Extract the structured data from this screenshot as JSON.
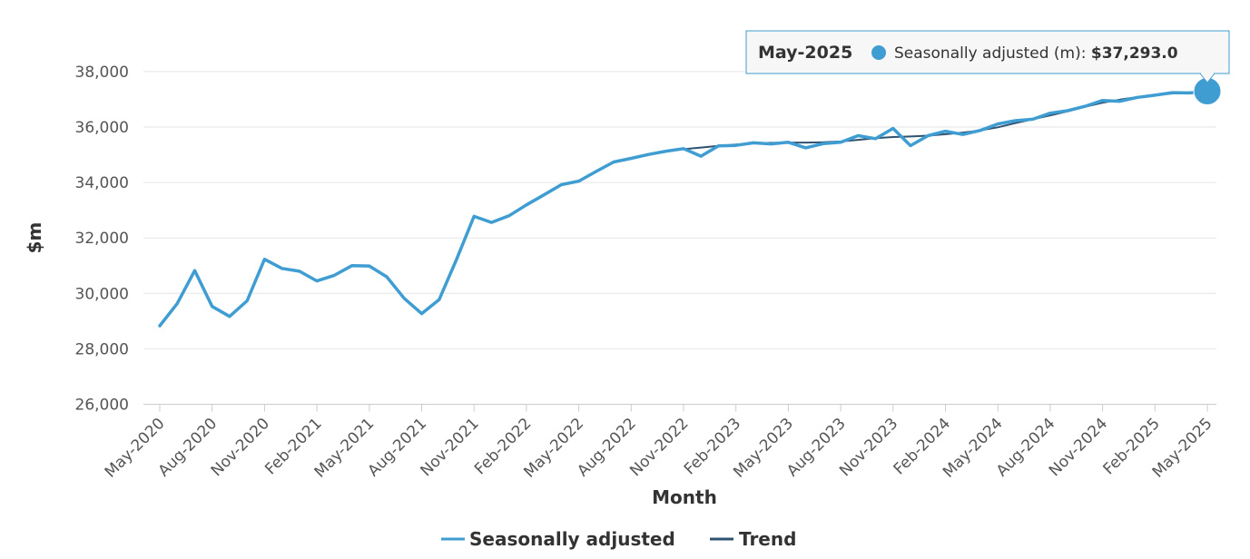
{
  "chart_data": {
    "type": "line",
    "xlabel": "Month",
    "ylabel": "$m",
    "ylim": [
      26000,
      38500
    ],
    "yticks": [
      26000,
      28000,
      30000,
      32000,
      34000,
      36000,
      38000
    ],
    "ytick_labels": [
      "26,000",
      "28,000",
      "30,000",
      "32,000",
      "34,000",
      "36,000",
      "38,000"
    ],
    "x_tick_labels": [
      "May-2020",
      "Aug-2020",
      "Nov-2020",
      "Feb-2021",
      "May-2021",
      "Aug-2021",
      "Nov-2021",
      "Feb-2022",
      "May-2022",
      "Aug-2022",
      "Nov-2022",
      "Feb-2023",
      "May-2023",
      "Aug-2023",
      "Nov-2023",
      "Feb-2024",
      "May-2024",
      "Aug-2024",
      "Nov-2024",
      "Feb-2025",
      "May-2025"
    ],
    "grid": true,
    "legend_position": "bottom-center",
    "x": [
      "May-2020",
      "Jun-2020",
      "Jul-2020",
      "Aug-2020",
      "Sep-2020",
      "Oct-2020",
      "Nov-2020",
      "Dec-2020",
      "Jan-2021",
      "Feb-2021",
      "Mar-2021",
      "Apr-2021",
      "May-2021",
      "Jun-2021",
      "Jul-2021",
      "Aug-2021",
      "Sep-2021",
      "Oct-2021",
      "Nov-2021",
      "Dec-2021",
      "Jan-2022",
      "Feb-2022",
      "Mar-2022",
      "Apr-2022",
      "May-2022",
      "Jun-2022",
      "Jul-2022",
      "Aug-2022",
      "Sep-2022",
      "Oct-2022",
      "Nov-2022",
      "Dec-2022",
      "Jan-2023",
      "Feb-2023",
      "Mar-2023",
      "Apr-2023",
      "May-2023",
      "Jun-2023",
      "Jul-2023",
      "Aug-2023",
      "Sep-2023",
      "Oct-2023",
      "Nov-2023",
      "Dec-2023",
      "Jan-2024",
      "Feb-2024",
      "Mar-2024",
      "Apr-2024",
      "May-2024",
      "Jun-2024",
      "Jul-2024",
      "Aug-2024",
      "Sep-2024",
      "Oct-2024",
      "Nov-2024",
      "Dec-2024",
      "Jan-2025",
      "Feb-2025",
      "Mar-2025",
      "Apr-2025",
      "May-2025"
    ],
    "series": [
      {
        "name": "Seasonally adjusted",
        "color": "#3f9dd2",
        "values": [
          28830,
          29630,
          30820,
          29530,
          29170,
          29730,
          31230,
          30900,
          30800,
          30450,
          30650,
          31000,
          30990,
          30600,
          29820,
          29270,
          29770,
          31230,
          32780,
          32560,
          32800,
          33190,
          33550,
          33920,
          34050,
          34400,
          34740,
          34870,
          35010,
          35130,
          35220,
          34950,
          35320,
          35340,
          35430,
          35390,
          35450,
          35250,
          35400,
          35450,
          35690,
          35580,
          35950,
          35330,
          35690,
          35850,
          35730,
          35880,
          36110,
          36230,
          36280,
          36500,
          36590,
          36750,
          36960,
          36930,
          37070,
          37150,
          37240,
          37230,
          37293
        ]
      },
      {
        "name": "Trend",
        "color": "#2f5270",
        "values": [
          null,
          null,
          null,
          null,
          null,
          null,
          null,
          null,
          null,
          null,
          null,
          null,
          null,
          null,
          null,
          null,
          null,
          null,
          null,
          null,
          null,
          null,
          null,
          null,
          null,
          null,
          null,
          null,
          null,
          null,
          35200,
          35260,
          35320,
          35370,
          35410,
          35430,
          35440,
          35440,
          35450,
          35480,
          35540,
          35600,
          35640,
          35660,
          35690,
          35740,
          35800,
          35880,
          35990,
          36140,
          36280,
          36420,
          36570,
          36730,
          36880,
          36990,
          37080,
          37150,
          37210,
          37250,
          37290
        ]
      }
    ],
    "tooltip": {
      "title": "May-2025",
      "label": "Seasonally adjusted (m): ",
      "value": "$37,293.0",
      "index": 60
    }
  }
}
